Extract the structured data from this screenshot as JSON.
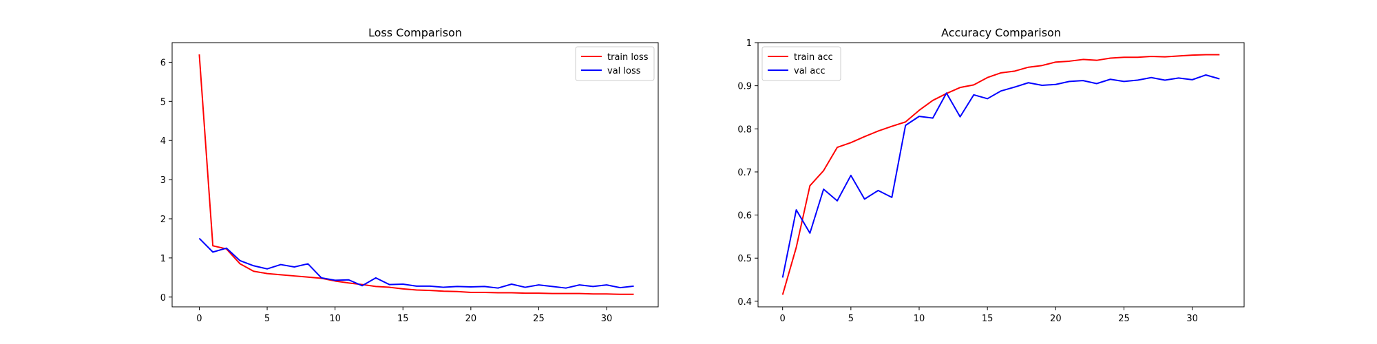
{
  "chart_data": [
    {
      "type": "line",
      "title": "Loss Comparison",
      "xlabel": "",
      "ylabel": "",
      "xlim": [
        -2,
        33.8
      ],
      "ylim": [
        -0.25,
        6.5
      ],
      "xticks": [
        0,
        5,
        10,
        15,
        20,
        25,
        30
      ],
      "yticks": [
        0,
        1,
        2,
        3,
        4,
        5,
        6
      ],
      "grid": false,
      "legend_position": "top-right",
      "x": [
        0,
        1,
        2,
        3,
        4,
        5,
        6,
        7,
        8,
        9,
        10,
        11,
        12,
        13,
        14,
        15,
        16,
        17,
        18,
        19,
        20,
        21,
        22,
        23,
        24,
        25,
        26,
        27,
        28,
        29,
        30,
        31,
        32
      ],
      "series": [
        {
          "name": "train loss",
          "color": "#ff0000",
          "values": [
            6.2,
            1.31,
            1.23,
            0.85,
            0.66,
            0.6,
            0.57,
            0.54,
            0.51,
            0.48,
            0.41,
            0.36,
            0.32,
            0.27,
            0.25,
            0.21,
            0.18,
            0.17,
            0.15,
            0.14,
            0.12,
            0.12,
            0.11,
            0.11,
            0.1,
            0.1,
            0.09,
            0.09,
            0.09,
            0.08,
            0.08,
            0.07,
            0.07
          ]
        },
        {
          "name": "val loss",
          "color": "#0000ff",
          "values": [
            1.5,
            1.15,
            1.25,
            0.93,
            0.8,
            0.72,
            0.83,
            0.77,
            0.85,
            0.49,
            0.43,
            0.44,
            0.29,
            0.49,
            0.32,
            0.33,
            0.28,
            0.28,
            0.25,
            0.27,
            0.26,
            0.27,
            0.23,
            0.33,
            0.25,
            0.31,
            0.27,
            0.23,
            0.31,
            0.27,
            0.31,
            0.24,
            0.28
          ]
        }
      ]
    },
    {
      "type": "line",
      "title": "Accuracy Comparison",
      "xlabel": "",
      "ylabel": "",
      "xlim": [
        -1.8,
        33.8
      ],
      "ylim": [
        0.387,
        1.0
      ],
      "xticks": [
        0,
        5,
        10,
        15,
        20,
        25,
        30
      ],
      "yticks": [
        0.4,
        0.5,
        0.6,
        0.7,
        0.8,
        0.9,
        1.0
      ],
      "grid": false,
      "legend_position": "top-left",
      "x": [
        0,
        1,
        2,
        3,
        4,
        5,
        6,
        7,
        8,
        9,
        10,
        11,
        12,
        13,
        14,
        15,
        16,
        17,
        18,
        19,
        20,
        21,
        22,
        23,
        24,
        25,
        26,
        27,
        28,
        29,
        30,
        31,
        32
      ],
      "series": [
        {
          "name": "train acc",
          "color": "#ff0000",
          "values": [
            0.415,
            0.525,
            0.668,
            0.703,
            0.757,
            0.768,
            0.782,
            0.795,
            0.806,
            0.816,
            0.843,
            0.866,
            0.882,
            0.896,
            0.902,
            0.919,
            0.93,
            0.934,
            0.943,
            0.947,
            0.955,
            0.957,
            0.961,
            0.959,
            0.964,
            0.966,
            0.966,
            0.968,
            0.967,
            0.969,
            0.971,
            0.972,
            0.972
          ]
        },
        {
          "name": "val acc",
          "color": "#0000ff",
          "values": [
            0.455,
            0.612,
            0.558,
            0.66,
            0.633,
            0.692,
            0.637,
            0.657,
            0.641,
            0.808,
            0.829,
            0.825,
            0.883,
            0.828,
            0.879,
            0.87,
            0.888,
            0.897,
            0.907,
            0.901,
            0.903,
            0.91,
            0.912,
            0.905,
            0.915,
            0.91,
            0.913,
            0.919,
            0.913,
            0.918,
            0.914,
            0.925,
            0.916
          ]
        }
      ]
    }
  ]
}
